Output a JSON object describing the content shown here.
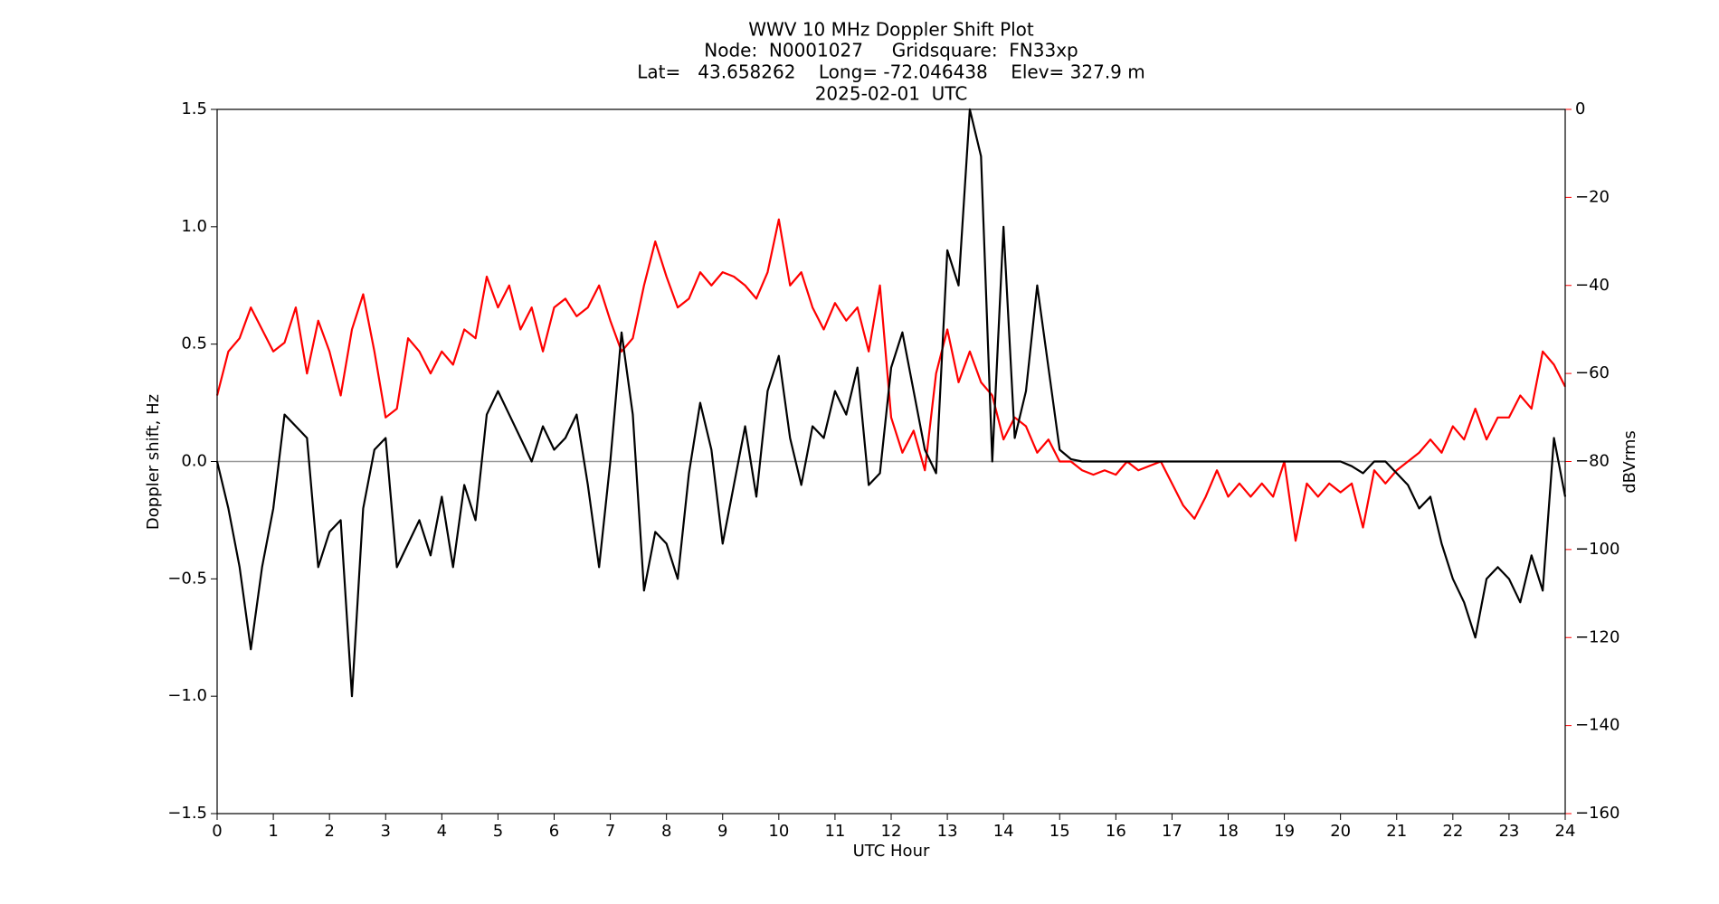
{
  "chart_data": {
    "type": "line",
    "title": [
      "WWV 10 MHz Doppler Shift Plot",
      "Node:  N0001027     Gridsquare:  FN33xp",
      "Lat=   43.658262    Long= -72.046438    Elev= 327.9 m",
      "2025-02-01  UTC"
    ],
    "xlabel": "UTC Hour",
    "ylabel": "Doppler shift, Hz",
    "y2label": "dBVrms",
    "y2_color": "#ff0000",
    "xlim": [
      0,
      24
    ],
    "xticks": [
      0,
      1,
      2,
      3,
      4,
      5,
      6,
      7,
      8,
      9,
      10,
      11,
      12,
      13,
      14,
      15,
      16,
      17,
      18,
      19,
      20,
      21,
      22,
      23,
      24
    ],
    "ylim": [
      -1.5,
      1.5
    ],
    "yticks": [
      {
        "value": -1.5,
        "label": "−1.5"
      },
      {
        "value": -1.0,
        "label": "−1.0"
      },
      {
        "value": -0.5,
        "label": "−0.5"
      },
      {
        "value": 0,
        "label": "0.0"
      },
      0.5,
      {
        "value": 1.0,
        "label": "1.0"
      },
      1.5
    ],
    "y2lim": [
      -160,
      0
    ],
    "y2ticks": [
      {
        "value": -160,
        "label": "−160"
      },
      {
        "value": -140,
        "label": "−140"
      },
      {
        "value": -120,
        "label": "−120"
      },
      {
        "value": -100,
        "label": "−100"
      },
      {
        "value": -80,
        "label": "−80"
      },
      {
        "value": -60,
        "label": "−60"
      },
      {
        "value": -40,
        "label": "−40"
      },
      {
        "value": -20,
        "label": "−20"
      },
      0
    ],
    "hline": 0,
    "hline_color": "#999999",
    "x": [
      0,
      0.2,
      0.4,
      0.6,
      0.8,
      1,
      1.2,
      1.4,
      1.6,
      1.8,
      2,
      2.2,
      2.4,
      2.6,
      2.8,
      3,
      3.2,
      3.4,
      3.6,
      3.8,
      4,
      4.2,
      4.4,
      4.6,
      4.8,
      5,
      5.2,
      5.4,
      5.6,
      5.8,
      6,
      6.2,
      6.4,
      6.6,
      6.8,
      7,
      7.2,
      7.4,
      7.6,
      7.8,
      8,
      8.2,
      8.4,
      8.6,
      8.8,
      9,
      9.2,
      9.4,
      9.6,
      9.8,
      10,
      10.2,
      10.4,
      10.6,
      10.8,
      11,
      11.2,
      11.4,
      11.6,
      11.8,
      12,
      12.2,
      12.4,
      12.6,
      12.8,
      13,
      13.2,
      13.4,
      13.6,
      13.8,
      14,
      14.2,
      14.4,
      14.6,
      14.8,
      15,
      15.2,
      15.4,
      15.6,
      15.8,
      16,
      16.2,
      16.4,
      16.6,
      16.8,
      17,
      17.2,
      17.4,
      17.6,
      17.8,
      18,
      18.2,
      18.4,
      18.6,
      18.8,
      19,
      19.2,
      19.4,
      19.6,
      19.8,
      20,
      20.2,
      20.4,
      20.6,
      20.8,
      21,
      21.2,
      21.4,
      21.6,
      21.8,
      22,
      22.2,
      22.4,
      22.6,
      22.8,
      23,
      23.2,
      23.4,
      23.6,
      23.8,
      24
    ],
    "series": [
      {
        "color": "#000000",
        "axis": "y",
        "values": [
          0.0,
          -0.2,
          -0.45,
          -0.8,
          -0.45,
          -0.2,
          0.2,
          0.15,
          0.1,
          -0.45,
          -0.3,
          -0.25,
          -1.0,
          -0.2,
          0.05,
          0.1,
          -0.45,
          -0.35,
          -0.25,
          -0.4,
          -0.15,
          -0.45,
          -0.1,
          -0.25,
          0.2,
          0.3,
          0.2,
          0.1,
          0.0,
          0.15,
          0.05,
          0.1,
          0.2,
          -0.1,
          -0.45,
          0.0,
          0.55,
          0.2,
          -0.55,
          -0.3,
          -0.35,
          -0.5,
          -0.05,
          0.25,
          0.05,
          -0.35,
          -0.1,
          0.15,
          -0.15,
          0.3,
          0.45,
          0.1,
          -0.1,
          0.15,
          0.1,
          0.3,
          0.2,
          0.4,
          -0.1,
          -0.05,
          0.4,
          0.55,
          0.3,
          0.05,
          -0.05,
          0.9,
          0.75,
          1.5,
          1.3,
          0.0,
          1.0,
          0.1,
          0.3,
          0.75,
          0.4,
          0.05,
          0.01,
          0,
          0,
          0,
          0,
          0,
          0,
          0,
          0,
          0,
          0,
          0,
          0,
          0,
          0,
          0,
          0,
          0,
          0,
          0,
          0,
          0,
          0,
          0,
          0,
          -0.02,
          -0.05,
          0,
          0,
          -0.05,
          -0.1,
          -0.2,
          -0.15,
          -0.35,
          -0.5,
          -0.6,
          -0.75,
          -0.5,
          -0.45,
          -0.5,
          -0.6,
          -0.4,
          -0.55,
          0.1,
          -0.15
        ]
      },
      {
        "color": "#ff0000",
        "axis": "y2",
        "values": [
          -65,
          -55,
          -52,
          -45,
          -50,
          -55,
          -53,
          -45,
          -60,
          -48,
          -55,
          -65,
          -50,
          -42,
          -55,
          -70,
          -68,
          -52,
          -55,
          -60,
          -55,
          -58,
          -50,
          -52,
          -38,
          -45,
          -40,
          -50,
          -45,
          -55,
          -45,
          -43,
          -47,
          -45,
          -40,
          -48,
          -55,
          -52,
          -40,
          -30,
          -38,
          -45,
          -43,
          -37,
          -40,
          -37,
          -38,
          -40,
          -43,
          -37,
          -25,
          -40,
          -37,
          -45,
          -50,
          -44,
          -48,
          -45,
          -55,
          -40,
          -70,
          -78,
          -73,
          -82,
          -60,
          -50,
          -62,
          -55,
          -62,
          -65,
          -75,
          -70,
          -72,
          -78,
          -75,
          -80,
          -80,
          -82,
          -83,
          -82,
          -83,
          -80,
          -82,
          -81,
          -80,
          -85,
          -90,
          -93,
          -88,
          -82,
          -88,
          -85,
          -88,
          -85,
          -88,
          -80,
          -98,
          -85,
          -88,
          -85,
          -87,
          -85,
          -95,
          -82,
          -85,
          -82,
          -80,
          -78,
          -75,
          -78,
          -72,
          -75,
          -68,
          -75,
          -70,
          -70,
          -65,
          -68,
          -55,
          -58,
          -63
        ]
      }
    ]
  }
}
